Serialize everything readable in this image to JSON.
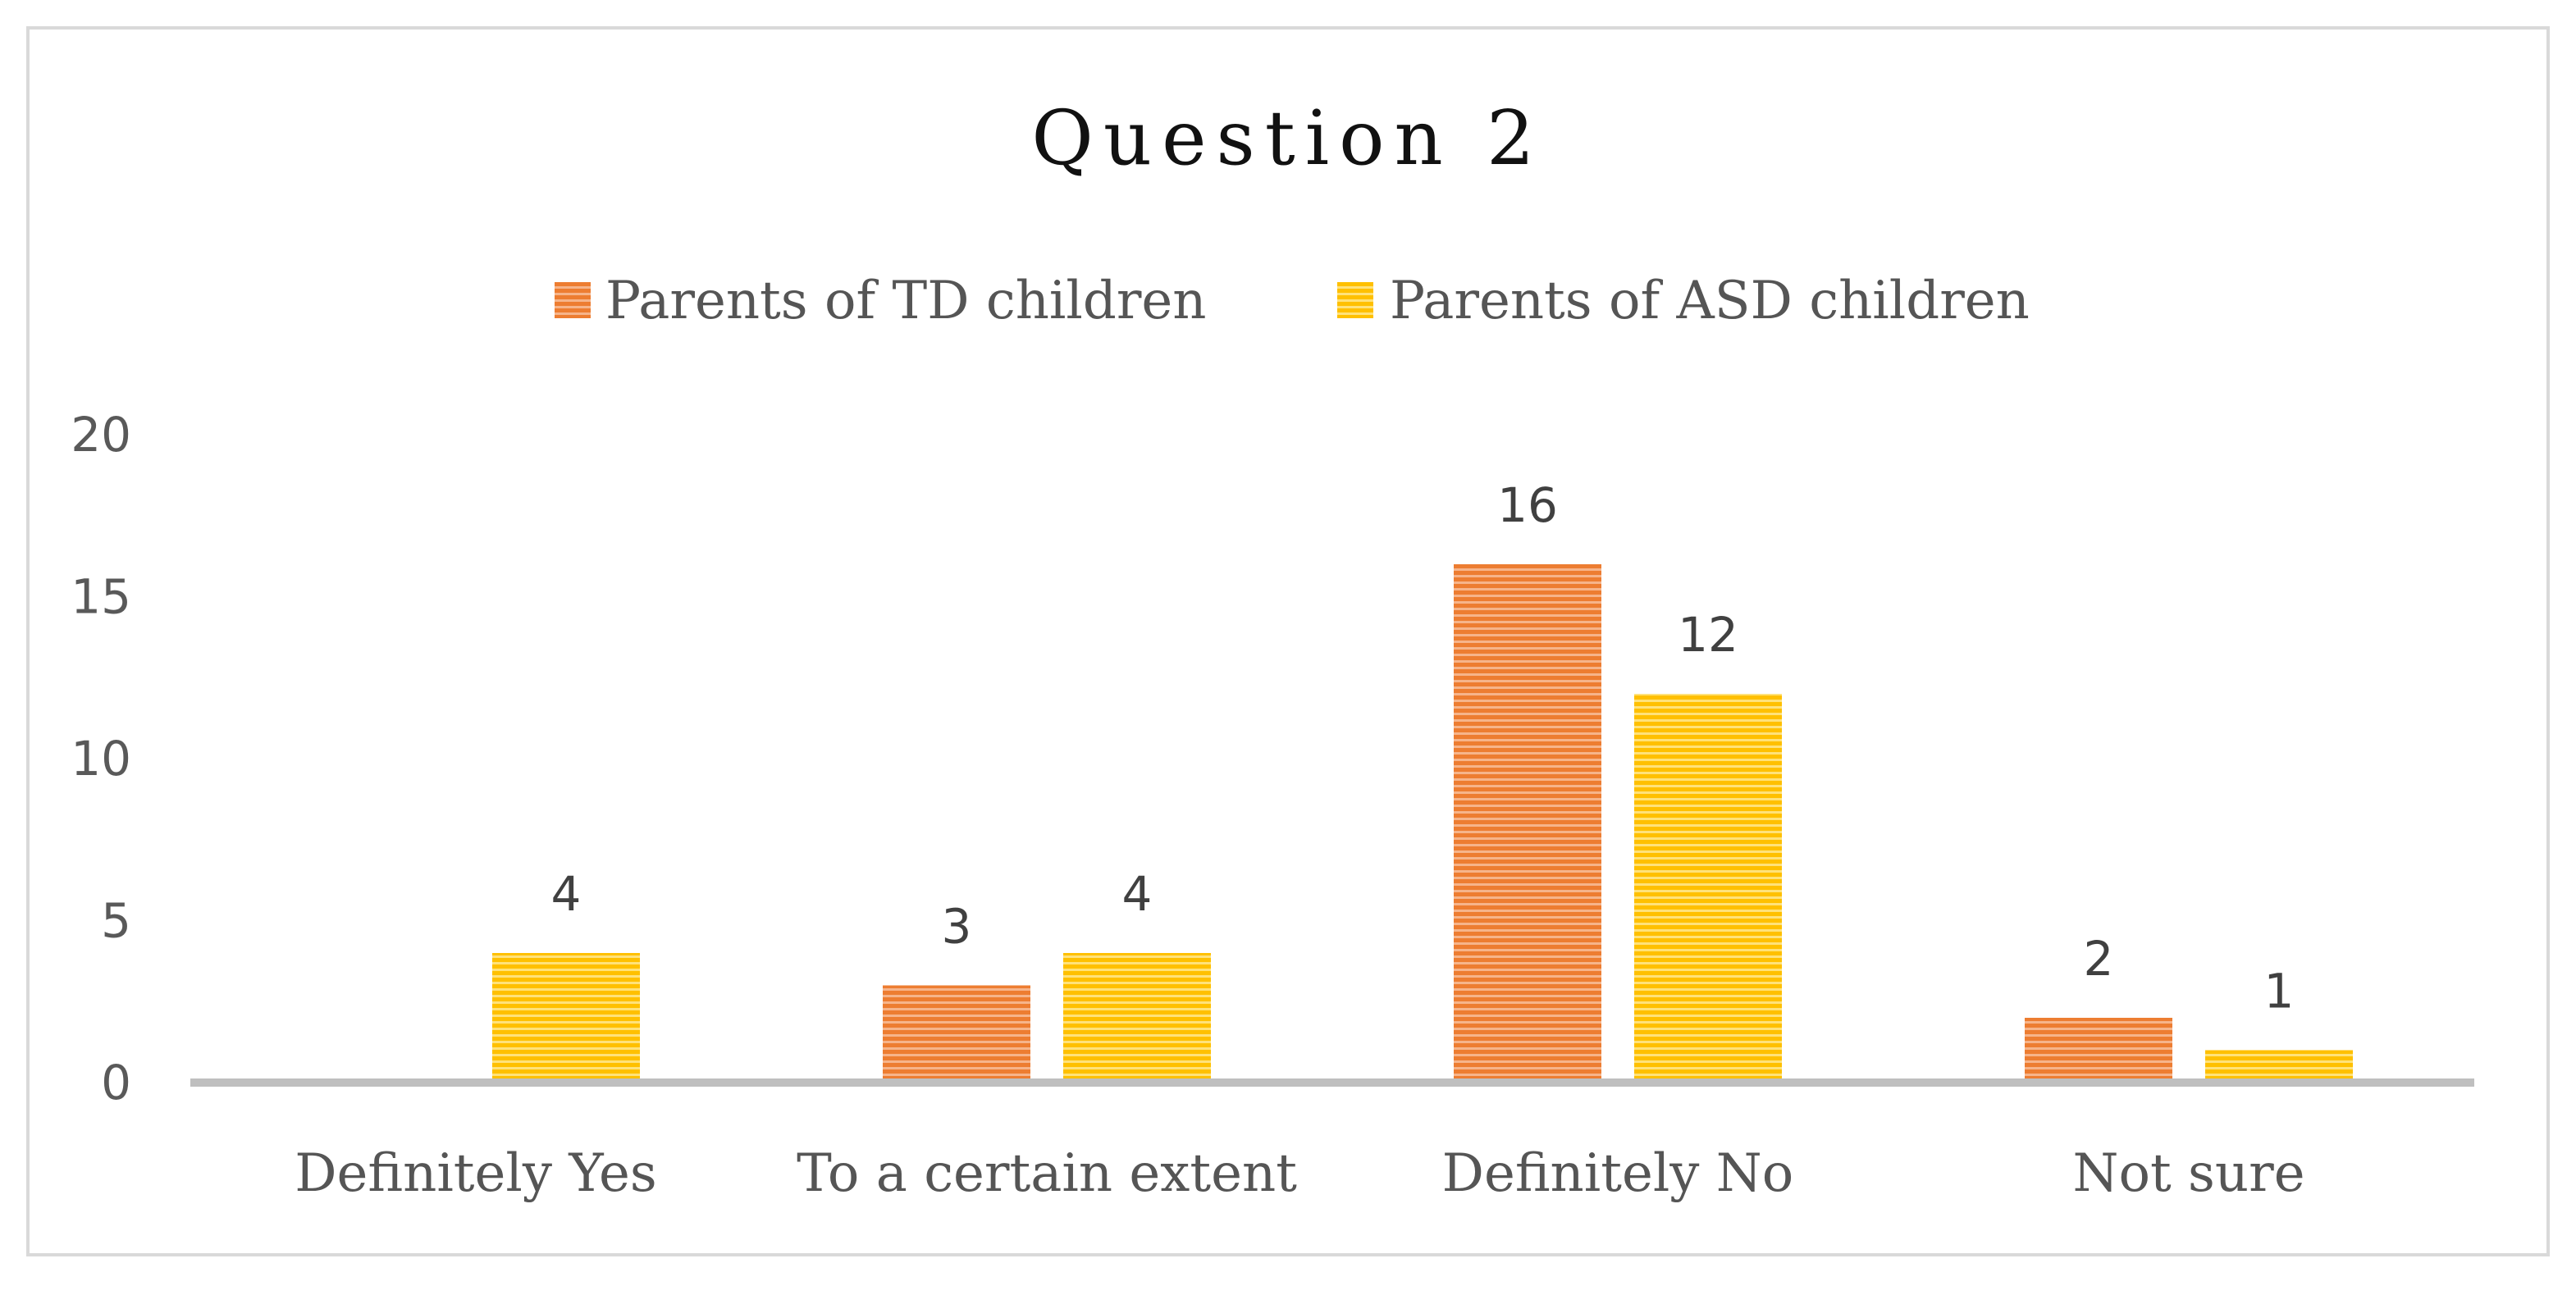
{
  "chart_data": {
    "type": "bar",
    "title": "Question 2",
    "categories": [
      "Definitely Yes",
      "To a certain extent",
      "Definitely No",
      "Not sure"
    ],
    "series": [
      {
        "name": "Parents of TD children",
        "values": [
          0,
          3,
          16,
          2
        ],
        "labels": [
          "",
          "3",
          "16",
          "2"
        ],
        "color": "#ED7D31",
        "stripe": "#F6B48A"
      },
      {
        "name": "Parents of ASD children",
        "values": [
          4,
          4,
          12,
          1
        ],
        "labels": [
          "4",
          "4",
          "12",
          "1"
        ],
        "color": "#FFC000",
        "stripe": "#FFE27A"
      }
    ],
    "ylim": [
      0,
      20
    ],
    "yticks": [
      0,
      5,
      10,
      15,
      20
    ],
    "xlabel": "",
    "ylabel": "",
    "legend": "top-center",
    "grid": false,
    "axis_color": "#BFBFBF"
  }
}
